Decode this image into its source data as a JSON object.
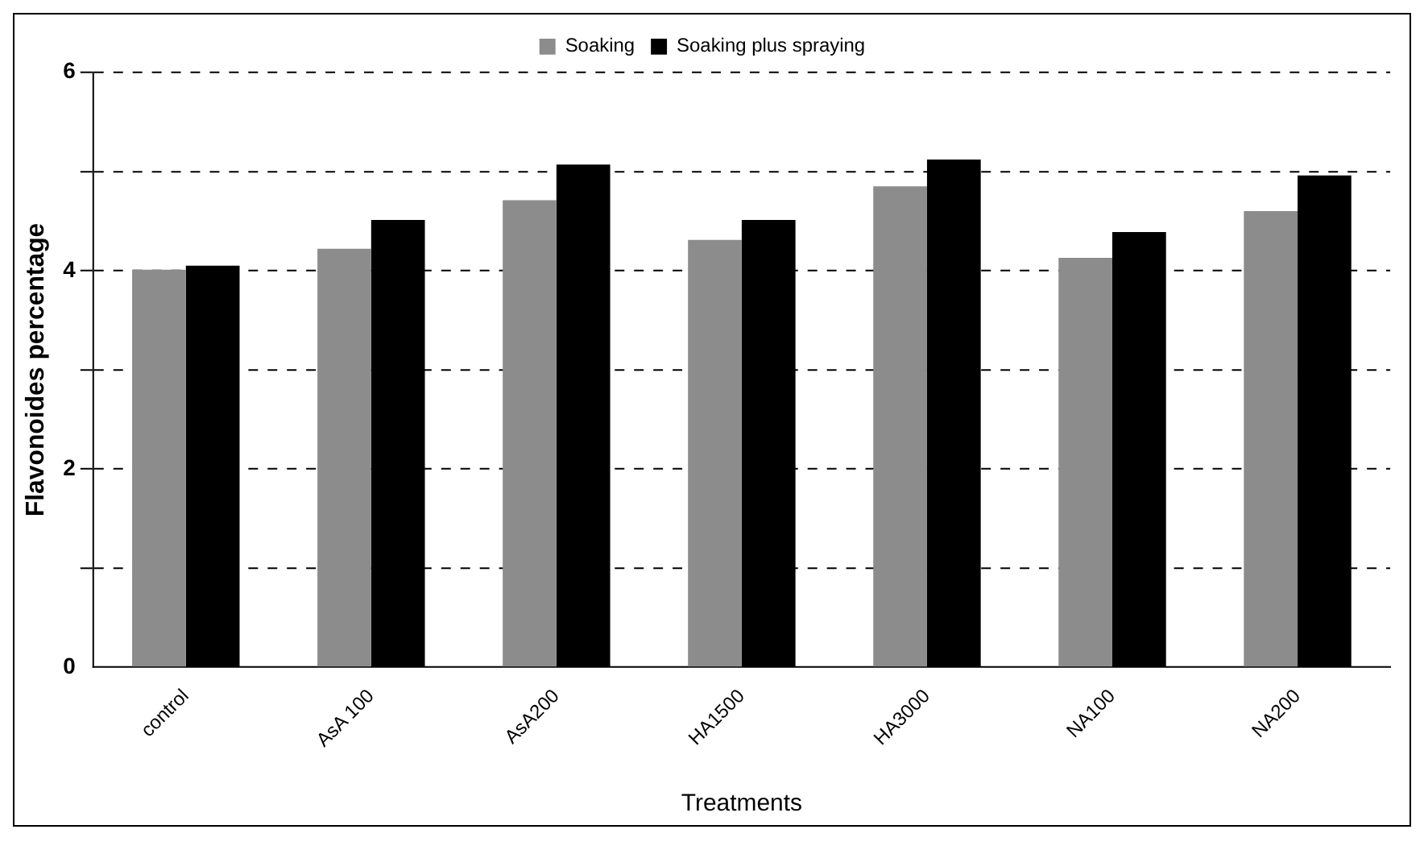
{
  "chart_data": {
    "type": "bar",
    "xlabel": "Treatments",
    "ylabel": "Flavonoides percentage",
    "categories": [
      "control",
      "AsA 100",
      "AsA200",
      "HA1500",
      "HA3000",
      "NA100",
      "NA200"
    ],
    "series": [
      {
        "name": "Soaking",
        "color": "#8c8c8c",
        "values": [
          4.01,
          4.22,
          4.71,
          4.31,
          4.85,
          4.13,
          4.6
        ]
      },
      {
        "name": "Soaking plus spraying",
        "color": "#000000",
        "values": [
          4.05,
          4.51,
          5.07,
          4.51,
          5.12,
          4.39,
          4.96
        ]
      }
    ],
    "ylim": [
      0,
      6
    ],
    "yticks": [
      0,
      {
        "value": 1,
        "label": null
      },
      2,
      {
        "value": 3,
        "label": null
      },
      4,
      {
        "value": 5,
        "label": null
      },
      6
    ],
    "grid": "y",
    "legend": "top"
  }
}
